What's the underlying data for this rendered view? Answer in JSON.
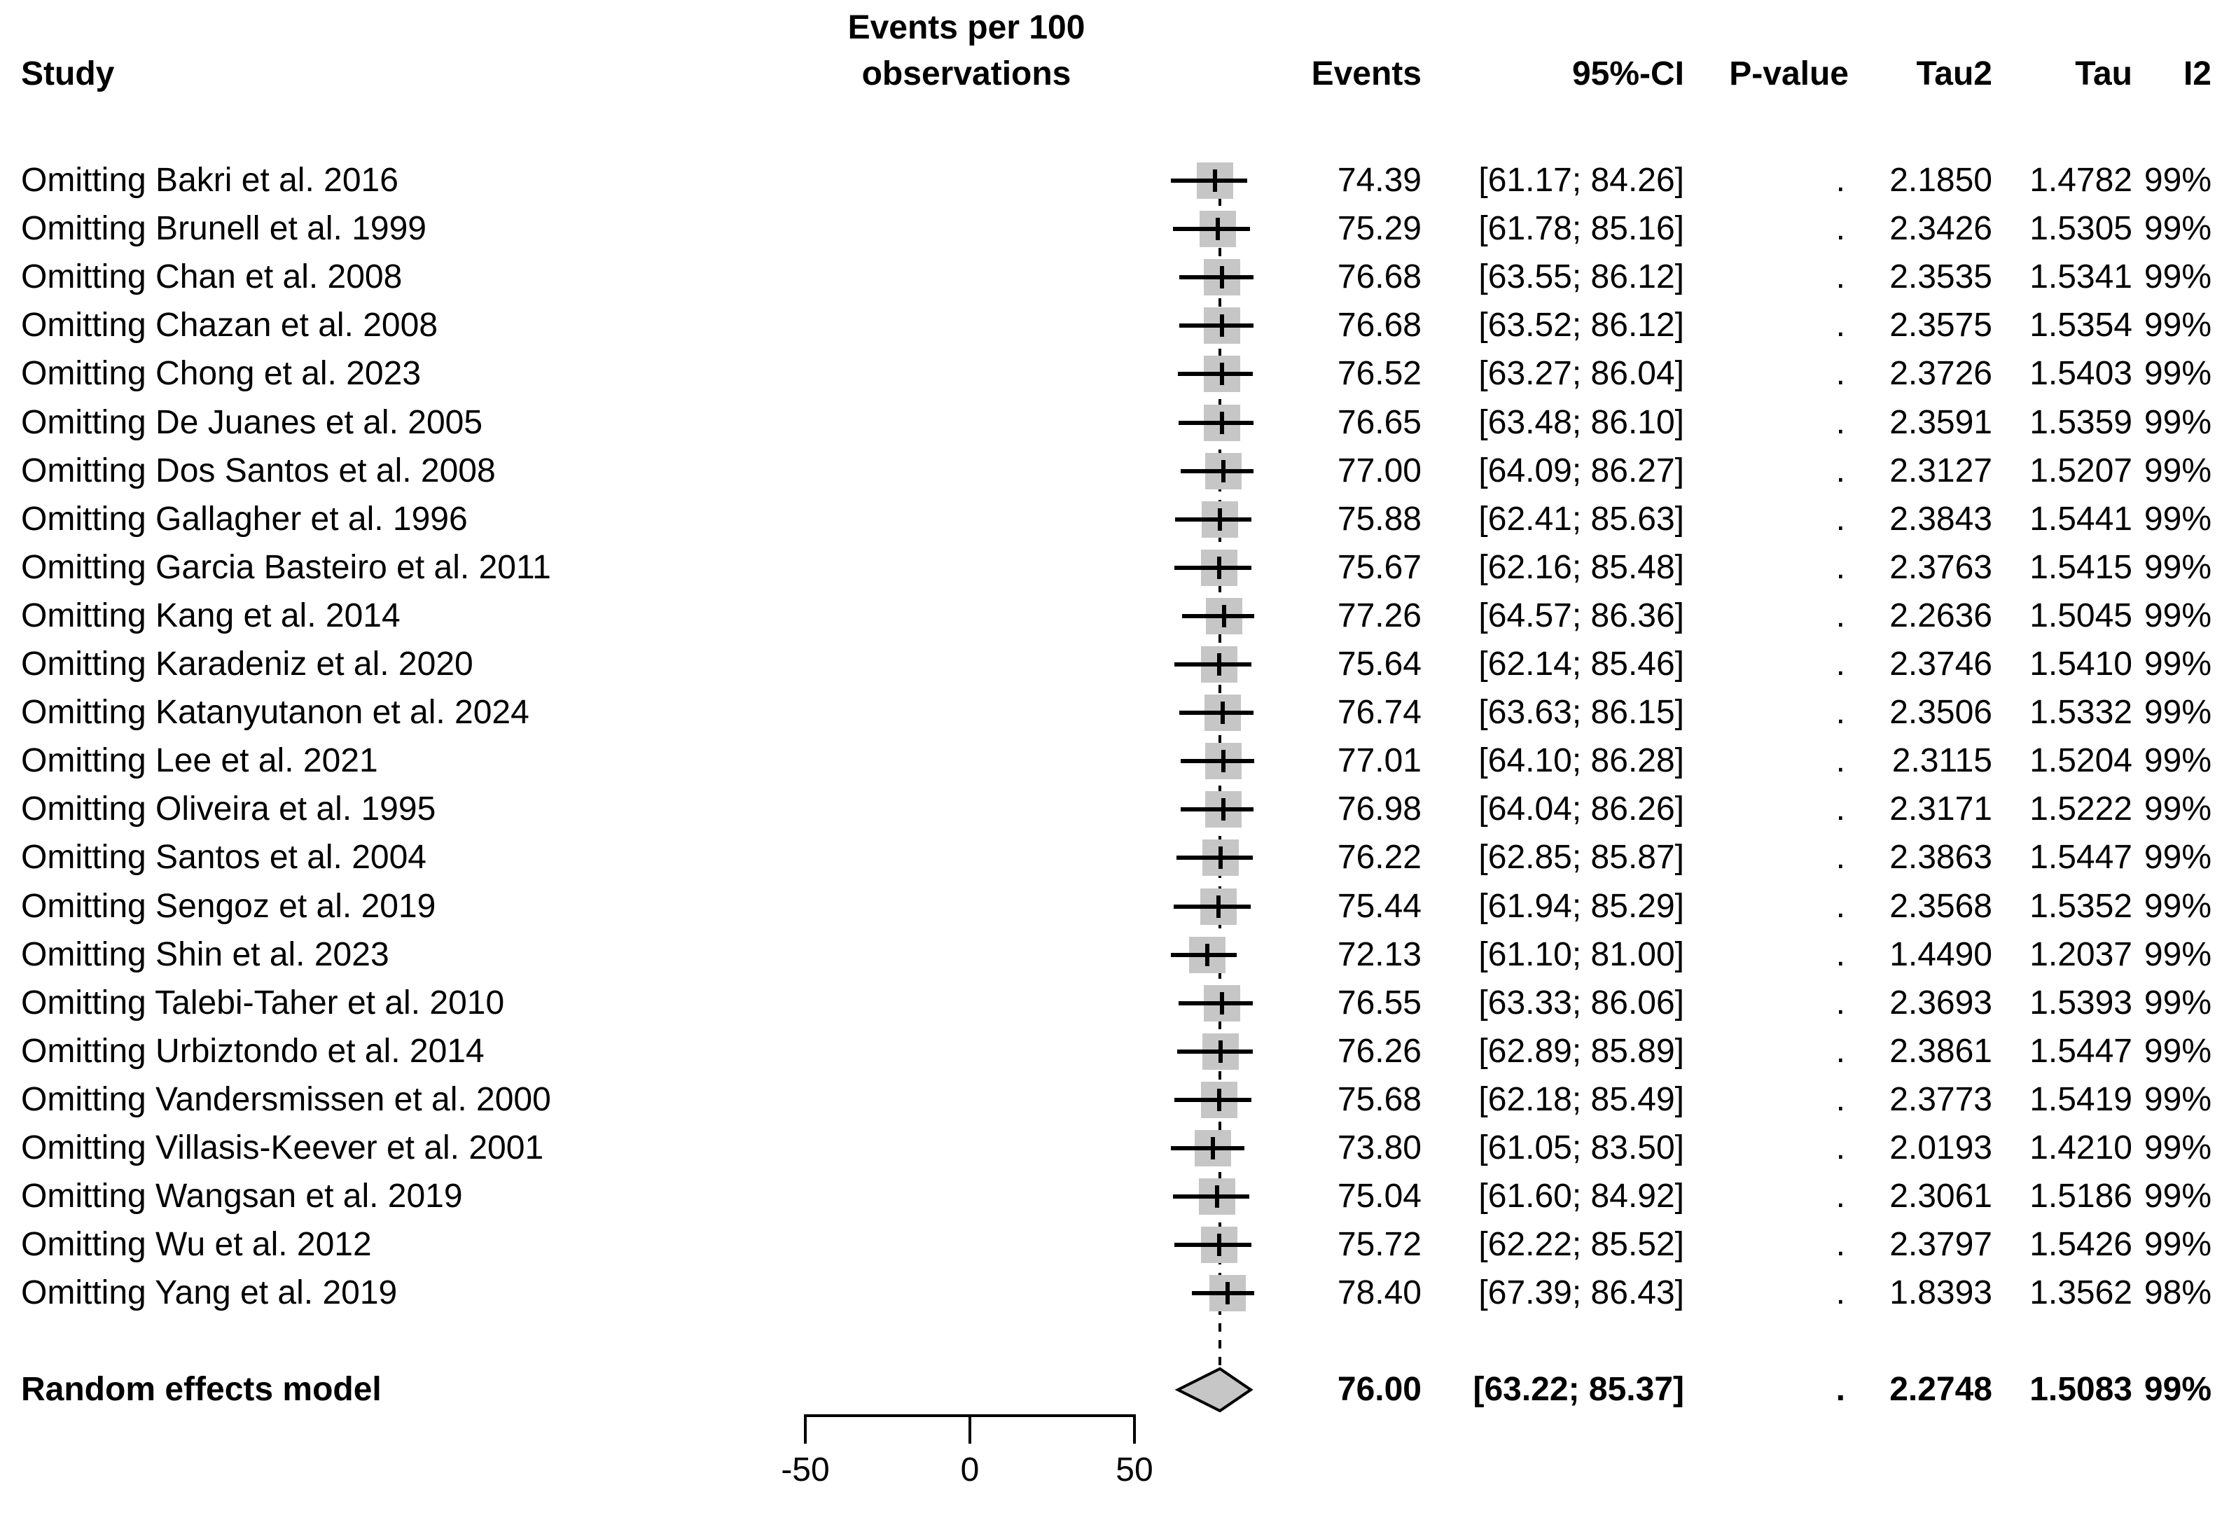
{
  "figure_type": "forest plot — leave-one-out sensitivity analysis (random effects meta-analysis)",
  "colors": {
    "background": "#ffffff",
    "text": "#000000",
    "square_fill": "#c6c6c6",
    "diamond_fill": "#c6c6c6",
    "line": "#000000"
  },
  "chart_data": {
    "type": "scatter",
    "variant": "forest-plot-leave-one-out",
    "title": "",
    "xlabel": "",
    "legend": "none",
    "grid": "off",
    "x_axis": {
      "ticks": [
        "-50",
        "0",
        "50"
      ],
      "tick_values": [
        -50,
        0,
        50
      ],
      "range_drawn": [
        -50,
        50
      ]
    },
    "columns": {
      "study": "Study",
      "measure_line1": "Events per 100",
      "measure_line2": "observations",
      "events": "Events",
      "ci": "95%-CI",
      "pvalue": "P-value",
      "tau2": "Tau2",
      "tau": "Tau",
      "i2": "I2"
    },
    "studies": [
      {
        "label": "Omitting Bakri et al. 2016",
        "events": "74.39",
        "estimate": 74.39,
        "ci": "[61.17; 84.26]",
        "ci_low": 61.17,
        "ci_high": 84.26,
        "pvalue": ".",
        "tau2": "2.1850",
        "tau": "1.4782",
        "i2": "99%"
      },
      {
        "label": "Omitting Brunell et al. 1999",
        "events": "75.29",
        "estimate": 75.29,
        "ci": "[61.78; 85.16]",
        "ci_low": 61.78,
        "ci_high": 85.16,
        "pvalue": ".",
        "tau2": "2.3426",
        "tau": "1.5305",
        "i2": "99%"
      },
      {
        "label": "Omitting Chan et al. 2008",
        "events": "76.68",
        "estimate": 76.68,
        "ci": "[63.55; 86.12]",
        "ci_low": 63.55,
        "ci_high": 86.12,
        "pvalue": ".",
        "tau2": "2.3535",
        "tau": "1.5341",
        "i2": "99%"
      },
      {
        "label": "Omitting Chazan et al. 2008",
        "events": "76.68",
        "estimate": 76.68,
        "ci": "[63.52; 86.12]",
        "ci_low": 63.52,
        "ci_high": 86.12,
        "pvalue": ".",
        "tau2": "2.3575",
        "tau": "1.5354",
        "i2": "99%"
      },
      {
        "label": "Omitting Chong et al. 2023",
        "events": "76.52",
        "estimate": 76.52,
        "ci": "[63.27; 86.04]",
        "ci_low": 63.27,
        "ci_high": 86.04,
        "pvalue": ".",
        "tau2": "2.3726",
        "tau": "1.5403",
        "i2": "99%"
      },
      {
        "label": "Omitting De Juanes et al. 2005",
        "events": "76.65",
        "estimate": 76.65,
        "ci": "[63.48; 86.10]",
        "ci_low": 63.48,
        "ci_high": 86.1,
        "pvalue": ".",
        "tau2": "2.3591",
        "tau": "1.5359",
        "i2": "99%"
      },
      {
        "label": "Omitting Dos Santos et al. 2008",
        "events": "77.00",
        "estimate": 77.0,
        "ci": "[64.09; 86.27]",
        "ci_low": 64.09,
        "ci_high": 86.27,
        "pvalue": ".",
        "tau2": "2.3127",
        "tau": "1.5207",
        "i2": "99%"
      },
      {
        "label": "Omitting Gallagher et al. 1996",
        "events": "75.88",
        "estimate": 75.88,
        "ci": "[62.41; 85.63]",
        "ci_low": 62.41,
        "ci_high": 85.63,
        "pvalue": ".",
        "tau2": "2.3843",
        "tau": "1.5441",
        "i2": "99%"
      },
      {
        "label": "Omitting Garcia Basteiro et al. 2011",
        "events": "75.67",
        "estimate": 75.67,
        "ci": "[62.16; 85.48]",
        "ci_low": 62.16,
        "ci_high": 85.48,
        "pvalue": ".",
        "tau2": "2.3763",
        "tau": "1.5415",
        "i2": "99%"
      },
      {
        "label": "Omitting Kang et al. 2014",
        "events": "77.26",
        "estimate": 77.26,
        "ci": "[64.57; 86.36]",
        "ci_low": 64.57,
        "ci_high": 86.36,
        "pvalue": ".",
        "tau2": "2.2636",
        "tau": "1.5045",
        "i2": "99%"
      },
      {
        "label": "Omitting Karadeniz et al. 2020",
        "events": "75.64",
        "estimate": 75.64,
        "ci": "[62.14; 85.46]",
        "ci_low": 62.14,
        "ci_high": 85.46,
        "pvalue": ".",
        "tau2": "2.3746",
        "tau": "1.5410",
        "i2": "99%"
      },
      {
        "label": "Omitting Katanyutanon et al. 2024",
        "events": "76.74",
        "estimate": 76.74,
        "ci": "[63.63; 86.15]",
        "ci_low": 63.63,
        "ci_high": 86.15,
        "pvalue": ".",
        "tau2": "2.3506",
        "tau": "1.5332",
        "i2": "99%"
      },
      {
        "label": "Omitting Lee et al. 2021",
        "events": "77.01",
        "estimate": 77.01,
        "ci": "[64.10; 86.28]",
        "ci_low": 64.1,
        "ci_high": 86.28,
        "pvalue": ".",
        "tau2": "2.3115",
        "tau": "1.5204",
        "i2": "99%"
      },
      {
        "label": "Omitting Oliveira et al. 1995",
        "events": "76.98",
        "estimate": 76.98,
        "ci": "[64.04; 86.26]",
        "ci_low": 64.04,
        "ci_high": 86.26,
        "pvalue": ".",
        "tau2": "2.3171",
        "tau": "1.5222",
        "i2": "99%"
      },
      {
        "label": "Omitting Santos et al. 2004",
        "events": "76.22",
        "estimate": 76.22,
        "ci": "[62.85; 85.87]",
        "ci_low": 62.85,
        "ci_high": 85.87,
        "pvalue": ".",
        "tau2": "2.3863",
        "tau": "1.5447",
        "i2": "99%"
      },
      {
        "label": "Omitting Sengoz et al. 2019",
        "events": "75.44",
        "estimate": 75.44,
        "ci": "[61.94; 85.29]",
        "ci_low": 61.94,
        "ci_high": 85.29,
        "pvalue": ".",
        "tau2": "2.3568",
        "tau": "1.5352",
        "i2": "99%"
      },
      {
        "label": "Omitting Shin et al. 2023",
        "events": "72.13",
        "estimate": 72.13,
        "ci": "[61.10; 81.00]",
        "ci_low": 61.1,
        "ci_high": 81.0,
        "pvalue": ".",
        "tau2": "1.4490",
        "tau": "1.2037",
        "i2": "99%"
      },
      {
        "label": "Omitting Talebi-Taher et al. 2010",
        "events": "76.55",
        "estimate": 76.55,
        "ci": "[63.33; 86.06]",
        "ci_low": 63.33,
        "ci_high": 86.06,
        "pvalue": ".",
        "tau2": "2.3693",
        "tau": "1.5393",
        "i2": "99%"
      },
      {
        "label": "Omitting Urbiztondo et al. 2014",
        "events": "76.26",
        "estimate": 76.26,
        "ci": "[62.89; 85.89]",
        "ci_low": 62.89,
        "ci_high": 85.89,
        "pvalue": ".",
        "tau2": "2.3861",
        "tau": "1.5447",
        "i2": "99%"
      },
      {
        "label": "Omitting Vandersmissen et al. 2000",
        "events": "75.68",
        "estimate": 75.68,
        "ci": "[62.18; 85.49]",
        "ci_low": 62.18,
        "ci_high": 85.49,
        "pvalue": ".",
        "tau2": "2.3773",
        "tau": "1.5419",
        "i2": "99%"
      },
      {
        "label": "Omitting Villasis-Keever et al. 2001",
        "events": "73.80",
        "estimate": 73.8,
        "ci": "[61.05; 83.50]",
        "ci_low": 61.05,
        "ci_high": 83.5,
        "pvalue": ".",
        "tau2": "2.0193",
        "tau": "1.4210",
        "i2": "99%"
      },
      {
        "label": "Omitting Wangsan et al. 2019",
        "events": "75.04",
        "estimate": 75.04,
        "ci": "[61.60; 84.92]",
        "ci_low": 61.6,
        "ci_high": 84.92,
        "pvalue": ".",
        "tau2": "2.3061",
        "tau": "1.5186",
        "i2": "99%"
      },
      {
        "label": "Omitting Wu et al. 2012",
        "events": "75.72",
        "estimate": 75.72,
        "ci": "[62.22; 85.52]",
        "ci_low": 62.22,
        "ci_high": 85.52,
        "pvalue": ".",
        "tau2": "2.3797",
        "tau": "1.5426",
        "i2": "99%"
      },
      {
        "label": "Omitting Yang et al. 2019",
        "events": "78.40",
        "estimate": 78.4,
        "ci": "[67.39; 86.43]",
        "ci_low": 67.39,
        "ci_high": 86.43,
        "pvalue": ".",
        "tau2": "1.8393",
        "tau": "1.3562",
        "i2": "98%"
      }
    ],
    "summary": {
      "label": "Random effects model",
      "events": "76.00",
      "estimate": 76.0,
      "ci": "[63.22; 85.37]",
      "ci_low": 63.22,
      "ci_high": 85.37,
      "pvalue": ".",
      "tau2": "2.2748",
      "tau": "1.5083",
      "i2": "99%"
    }
  }
}
